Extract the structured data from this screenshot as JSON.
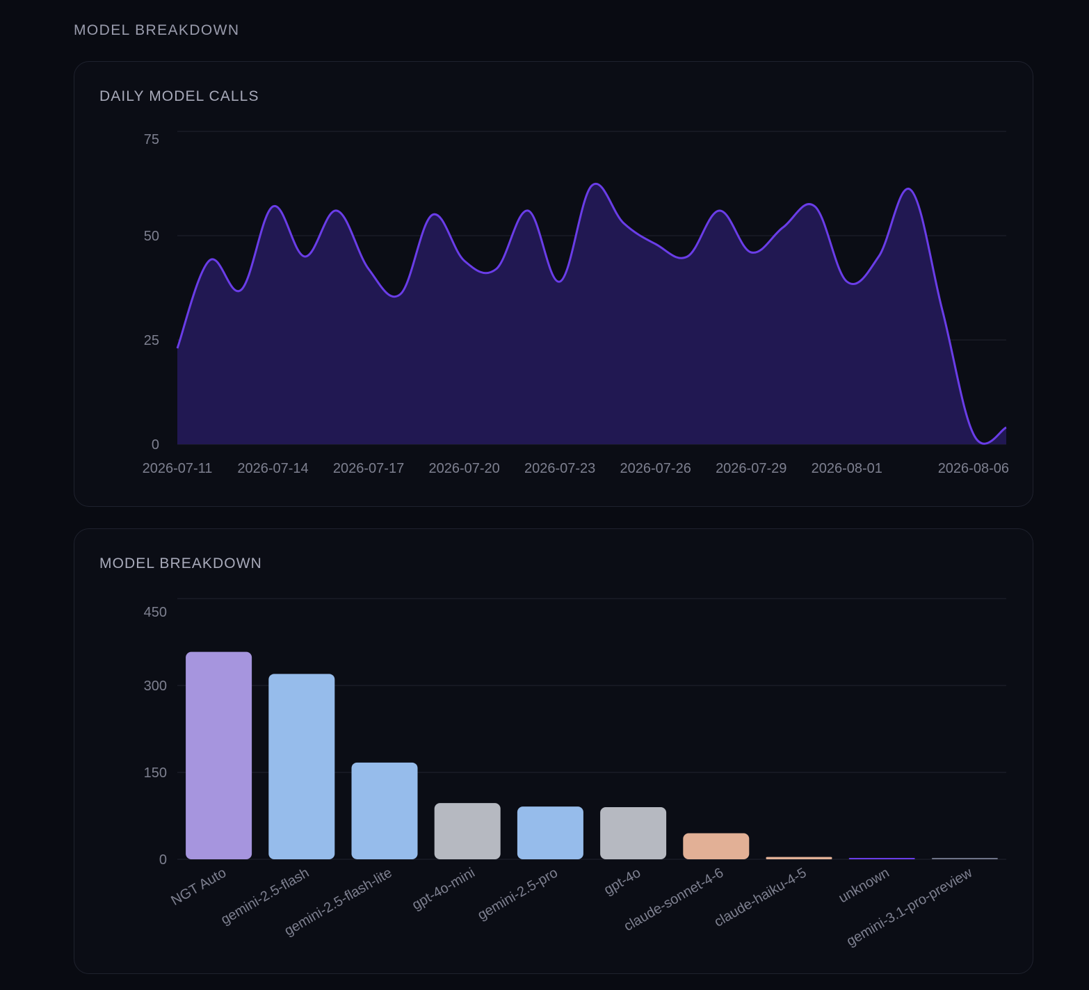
{
  "section": {
    "title": "MODEL BREAKDOWN"
  },
  "colors": {
    "background": "#090b12",
    "card_background": "#0b0d15",
    "grid": "#1c1f2a",
    "line": "#6a3de8",
    "area": "#211852",
    "bar_purple": "#a695de",
    "bar_blue": "#96bceb",
    "bar_gray": "#b6b9c1",
    "bar_orange": "#e2b096",
    "bar_violet": "#6a3de8",
    "bar_slate": "#6f7388"
  },
  "daily_card": {
    "title": "DAILY MODEL CALLS"
  },
  "breakdown_card": {
    "title": "MODEL BREAKDOWN"
  },
  "chart_data": [
    {
      "type": "area",
      "title": "DAILY MODEL CALLS",
      "ylim": [
        0,
        75
      ],
      "yticks": [
        0,
        25,
        50,
        75
      ],
      "grid": true,
      "xticks": [
        "2026-07-11",
        "2026-07-14",
        "2026-07-17",
        "2026-07-20",
        "2026-07-23",
        "2026-07-26",
        "2026-07-29",
        "2026-08-01",
        "2026-08-06"
      ],
      "x": [
        "2026-07-11",
        "2026-07-12",
        "2026-07-13",
        "2026-07-14",
        "2026-07-15",
        "2026-07-16",
        "2026-07-17",
        "2026-07-18",
        "2026-07-19",
        "2026-07-20",
        "2026-07-21",
        "2026-07-22",
        "2026-07-23",
        "2026-07-24",
        "2026-07-25",
        "2026-07-26",
        "2026-07-27",
        "2026-07-28",
        "2026-07-29",
        "2026-07-30",
        "2026-07-31",
        "2026-08-01",
        "2026-08-02",
        "2026-08-03",
        "2026-08-04",
        "2026-08-05",
        "2026-08-06"
      ],
      "values": [
        23,
        44,
        37,
        57,
        45,
        56,
        42,
        36,
        55,
        44,
        42,
        56,
        39,
        62,
        53,
        48,
        45,
        56,
        46,
        52,
        57,
        39,
        45,
        61,
        32,
        2,
        4
      ]
    },
    {
      "type": "bar",
      "title": "MODEL BREAKDOWN",
      "ylim": [
        0,
        450
      ],
      "yticks": [
        0,
        150,
        300,
        450
      ],
      "grid": true,
      "categories": [
        "NGT Auto",
        "gemini-2.5-flash",
        "gemini-2.5-flash-lite",
        "gpt-4o-mini",
        "gemini-2.5-pro",
        "gpt-4o",
        "claude-sonnet-4-6",
        "claude-haiku-4-5",
        "unknown",
        "gemini-3.1-pro-preview"
      ],
      "values": [
        358,
        320,
        167,
        97,
        91,
        90,
        45,
        4,
        2,
        1
      ],
      "bar_colors": [
        "#a695de",
        "#96bceb",
        "#96bceb",
        "#b6b9c1",
        "#96bceb",
        "#b6b9c1",
        "#e2b096",
        "#e2b096",
        "#6a3de8",
        "#6f7388"
      ]
    }
  ]
}
